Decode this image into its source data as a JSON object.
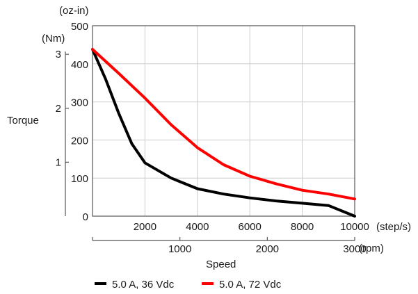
{
  "chart_data": {
    "type": "line",
    "ylabel": "Torque",
    "xlabel": "Speed",
    "y_axis_ozin": {
      "unit_label": "(oz-in)",
      "range": [
        0,
        500
      ],
      "ticks": [
        "0",
        "100",
        "200",
        "300",
        "400",
        "500"
      ]
    },
    "y_axis_nm": {
      "unit_label": "(Nm)",
      "range": [
        0,
        3.53
      ],
      "ticks": [
        "1",
        "2",
        "3"
      ]
    },
    "x_axis_steps": {
      "unit_label": "(step/s)",
      "range": [
        0,
        10000
      ],
      "ticks": [
        "2000",
        "4000",
        "6000",
        "8000",
        "10000"
      ]
    },
    "x_axis_rpm": {
      "unit_label": "(rpm)",
      "range": [
        0,
        3000
      ],
      "ticks": [
        "1000",
        "2000",
        "3000"
      ]
    },
    "grid": true,
    "legend_position": "bottom",
    "series": [
      {
        "name": "5.0 A, 36 Vdc",
        "color": "#000000",
        "x": [
          0,
          500,
          1000,
          1500,
          2000,
          3000,
          4000,
          5000,
          6000,
          7000,
          8000,
          9000,
          10000
        ],
        "y": [
          438,
          360,
          270,
          190,
          140,
          100,
          72,
          58,
          48,
          40,
          34,
          28,
          0
        ]
      },
      {
        "name": "5.0 A, 72 Vdc",
        "color": "#ff0000",
        "x": [
          0,
          1000,
          2000,
          3000,
          4000,
          5000,
          6000,
          7000,
          8000,
          9000,
          10000
        ],
        "y": [
          438,
          375,
          310,
          240,
          180,
          135,
          105,
          85,
          68,
          58,
          45
        ]
      }
    ]
  }
}
